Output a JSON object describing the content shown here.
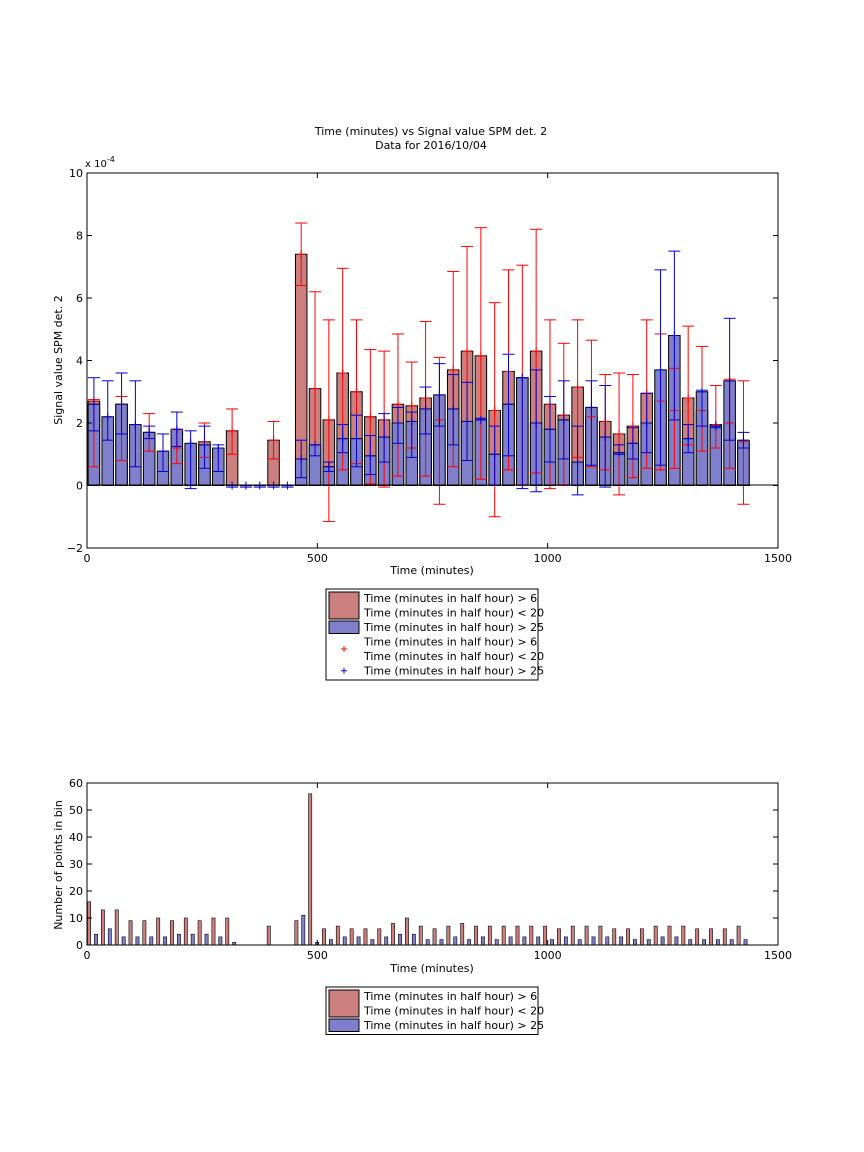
{
  "chart_data": [
    {
      "type": "bar",
      "title": "Time (minutes) vs Signal value SPM det. 2",
      "subtitle": "Data for 2016/10/04",
      "xlabel": "Time (minutes)",
      "ylabel": "Signal value SPM det. 2",
      "exponent_label": "x 10",
      "exponent_power": "-4",
      "xlim": [
        0,
        1500
      ],
      "ylim": [
        -2,
        10
      ],
      "x_ticks": [
        0,
        500,
        1000,
        1500
      ],
      "y_ticks": [
        -2,
        0,
        2,
        4,
        6,
        8,
        10
      ],
      "grid": false,
      "legend_position": "below plot",
      "legend": [
        {
          "kind": "bar",
          "color": "#cc7f7f",
          "lines": [
            "Time (minutes in half hour) > 6",
            "Time (minutes in half hour) < 20"
          ]
        },
        {
          "kind": "bar",
          "color": "#7f7fcc",
          "lines": [
            "Time (minutes in half hour) > 25"
          ]
        },
        {
          "kind": "marker",
          "color": "#ff0000",
          "lines": [
            "Time (minutes in half hour) > 6",
            "Time (minutes in half hour) < 20"
          ]
        },
        {
          "kind": "marker",
          "color": "#0000cc",
          "lines": [
            "Time (minutes in half hour) > 25"
          ]
        }
      ],
      "series": [
        {
          "color": "#cc7f7f",
          "errcolor": "#ff0000",
          "x": [
            15,
            75,
            135,
            195,
            255,
            315,
            405,
            465,
            495,
            525,
            555,
            585,
            615,
            645,
            675,
            705,
            735,
            765,
            795,
            825,
            855,
            885,
            915,
            945,
            975,
            1005,
            1035,
            1065,
            1095,
            1125,
            1155,
            1185,
            1215,
            1245,
            1275,
            1305,
            1335,
            1365,
            1395,
            1425
          ],
          "values": [
            2.7,
            2.6,
            1.7,
            1.2,
            1.4,
            1.75,
            1.45,
            7.4,
            3.1,
            2.1,
            3.6,
            3.0,
            2.2,
            2.1,
            2.6,
            2.55,
            2.8,
            2.1,
            3.7,
            4.3,
            4.15,
            2.4,
            3.65,
            3.45,
            4.3,
            2.6,
            2.25,
            3.15,
            2.2,
            2.05,
            1.65,
            1.9,
            2.95,
            2.7,
            2.4,
            2.8,
            2.4,
            1.95,
            2.0,
            1.4
          ],
          "err_low": [
            0.6,
            0.8,
            1.1,
            0.7,
            0.9,
            1.0,
            0.85,
            6.4,
            1.3,
            -1.15,
            0.5,
            0.7,
            0.05,
            -0.05,
            0.3,
            1.2,
            0.3,
            -0.6,
            0.6,
            0.8,
            0.2,
            -1.0,
            0.5,
            0.0,
            0.4,
            -0.1,
            0.0,
            0.9,
            0.6,
            0.5,
            -0.3,
            0.25,
            0.55,
            0.5,
            0.55,
            1.3,
            1.1,
            1.2,
            0.55,
            -0.6
          ],
          "err_high": [
            2.75,
            2.85,
            2.3,
            1.8,
            2.0,
            2.45,
            2.05,
            8.4,
            6.2,
            5.3,
            6.95,
            5.3,
            4.35,
            4.3,
            4.85,
            3.95,
            5.25,
            4.1,
            6.85,
            7.65,
            8.25,
            5.85,
            6.9,
            7.05,
            8.2,
            5.3,
            4.55,
            5.3,
            4.65,
            3.55,
            3.6,
            3.55,
            5.3,
            4.85,
            3.75,
            5.1,
            4.45,
            3.2,
            3.4,
            3.35
          ]
        },
        {
          "color": "#7f7fcc",
          "errcolor": "#0000cc",
          "x": [
            15,
            45,
            75,
            105,
            135,
            165,
            195,
            225,
            255,
            285,
            315,
            345,
            375,
            405,
            435,
            465,
            495,
            525,
            555,
            585,
            615,
            645,
            675,
            705,
            735,
            765,
            795,
            825,
            855,
            885,
            915,
            945,
            975,
            1005,
            1035,
            1065,
            1095,
            1125,
            1155,
            1185,
            1215,
            1245,
            1275,
            1305,
            1335,
            1365,
            1395,
            1425
          ],
          "values": [
            2.6,
            2.2,
            2.6,
            1.95,
            1.7,
            1.1,
            1.8,
            1.35,
            1.3,
            1.2,
            0,
            0,
            0,
            0,
            0,
            0.85,
            1.3,
            0.6,
            1.5,
            1.5,
            0.95,
            1.55,
            2.0,
            2.05,
            2.45,
            2.9,
            2.45,
            2.05,
            2.1,
            1.0,
            2.6,
            3.45,
            2.0,
            1.8,
            2.1,
            0.75,
            2.5,
            1.55,
            1.05,
            1.35,
            2.0,
            3.7,
            4.8,
            1.5,
            3.0,
            1.9,
            3.35,
            1.45
          ],
          "err_low": [
            1.75,
            1.45,
            1.65,
            0.6,
            1.5,
            0.45,
            1.25,
            -0.1,
            0.55,
            0.45,
            -0.05,
            -0.05,
            -0.05,
            -0.05,
            -0.05,
            0.25,
            0.95,
            0.45,
            1.05,
            0.6,
            0.35,
            0.75,
            1.35,
            0.9,
            1.65,
            1.9,
            1.3,
            0.8,
            2.1,
            0.0,
            0.95,
            -0.1,
            -0.2,
            0.75,
            0.85,
            -0.3,
            0.65,
            -0.05,
            1.0,
            0.85,
            1.05,
            0.65,
            2.1,
            1.05,
            1.9,
            1.85,
            1.45,
            1.2
          ],
          "err_high": [
            3.45,
            3.35,
            3.6,
            3.35,
            1.9,
            1.65,
            2.35,
            1.75,
            1.9,
            1.3,
            -0.05,
            -0.05,
            -0.05,
            -0.05,
            -0.05,
            1.45,
            1.3,
            0.75,
            1.95,
            2.25,
            1.6,
            2.3,
            2.5,
            2.35,
            3.15,
            3.9,
            3.55,
            3.3,
            2.15,
            1.9,
            4.2,
            3.45,
            3.7,
            2.85,
            3.35,
            1.9,
            3.35,
            3.2,
            1.3,
            1.85,
            2.95,
            6.9,
            7.5,
            1.95,
            3.05,
            1.9,
            5.35,
            1.7
          ]
        }
      ]
    },
    {
      "type": "bar",
      "xlabel": "Time (minutes)",
      "ylabel": "Number of points in bin",
      "xlim": [
        0,
        1500
      ],
      "ylim": [
        0,
        60
      ],
      "x_ticks": [
        0,
        500,
        1000,
        1500
      ],
      "y_ticks": [
        0,
        10,
        20,
        30,
        40,
        50,
        60
      ],
      "grid": false,
      "legend_position": "below plot",
      "legend": [
        {
          "kind": "bar",
          "color": "#cc7f7f",
          "lines": [
            "Time (minutes in half hour) > 6",
            "Time (minutes in half hour) < 20"
          ]
        },
        {
          "kind": "bar",
          "color": "#7f7fcc",
          "lines": [
            "Time (minutes in half hour) > 25"
          ]
        }
      ],
      "series": [
        {
          "color": "#cc7f7f",
          "x": [
            0,
            30,
            60,
            90,
            120,
            150,
            180,
            210,
            240,
            270,
            300,
            390,
            450,
            480,
            510,
            540,
            570,
            600,
            630,
            660,
            690,
            720,
            750,
            780,
            810,
            840,
            870,
            900,
            930,
            960,
            990,
            1020,
            1050,
            1080,
            1110,
            1140,
            1170,
            1200,
            1230,
            1260,
            1290,
            1320,
            1350,
            1380,
            1410
          ],
          "values": [
            16,
            13,
            13,
            9,
            9,
            10,
            9,
            10,
            9,
            10,
            10,
            7,
            9,
            56,
            6,
            7,
            6,
            6,
            6,
            8,
            10,
            7,
            6,
            7,
            8,
            7,
            7,
            7,
            7,
            7,
            7,
            6,
            7,
            7,
            7,
            6,
            6,
            6,
            7,
            7,
            7,
            6,
            6,
            6,
            7
          ]
        },
        {
          "color": "#7f7fcc",
          "x": [
            15,
            45,
            75,
            105,
            135,
            165,
            195,
            225,
            255,
            285,
            315,
            465,
            495,
            525,
            555,
            585,
            615,
            645,
            675,
            705,
            735,
            765,
            795,
            825,
            855,
            885,
            915,
            945,
            975,
            1005,
            1035,
            1065,
            1095,
            1125,
            1155,
            1185,
            1215,
            1245,
            1275,
            1305,
            1335,
            1365,
            1395,
            1425
          ],
          "values": [
            4,
            6,
            3,
            3,
            3,
            3,
            4,
            4,
            4,
            3,
            1,
            11,
            1,
            2,
            3,
            3,
            2,
            3,
            4,
            4,
            2,
            2,
            3,
            2,
            3,
            2,
            3,
            3,
            3,
            2,
            3,
            2,
            3,
            3,
            3,
            2,
            2,
            3,
            3,
            2,
            2,
            2,
            2,
            2
          ]
        }
      ]
    }
  ]
}
